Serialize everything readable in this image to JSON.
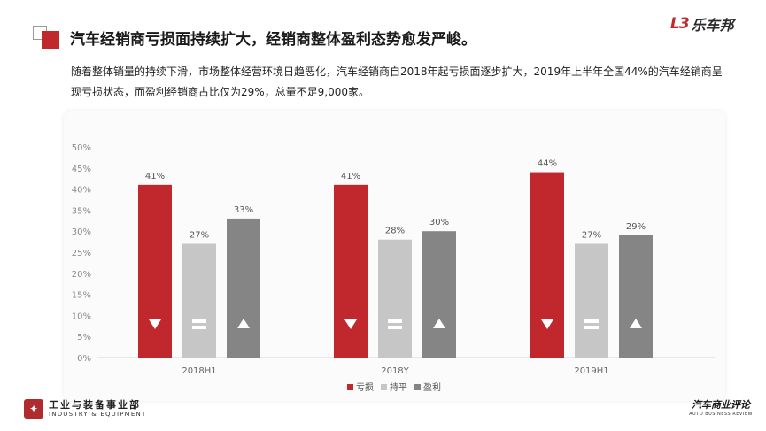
{
  "header": {
    "title": "汽车经销商亏损面持续扩大，经销商整体盈利态势愈发严峻。",
    "brand_mark": "L3",
    "brand_name": "乐车邦"
  },
  "description": "随着整体销量的持续下滑，市场整体经营环境日趋恶化，汽车经销商自2018年起亏损面逐步扩大，2019年上半年全国44%的汽车经销商呈现亏损状态，而盈利经销商占比仅为29%，总量不足9,000家。",
  "footer": {
    "left_logo_cn": "工业与装备事业部",
    "left_logo_en": "INDUSTRY & EQUIPMENT",
    "right_logo_cn": "汽车商业评论",
    "right_logo_en": "AUTO BUSINESS REVIEW"
  },
  "colors": {
    "loss": "#c0282d",
    "breakeven": "#c6c6c6",
    "profit": "#858585",
    "accent": "#c0282d"
  },
  "chart_data": {
    "type": "bar",
    "categories": [
      "2018H1",
      "2018Y",
      "2019H1"
    ],
    "series": [
      {
        "name": "亏损",
        "values": [
          41,
          41,
          44
        ],
        "labels": [
          "41%",
          "41%",
          "44%"
        ],
        "icon": "down-triangle-icon"
      },
      {
        "name": "持平",
        "values": [
          27,
          28,
          27
        ],
        "labels": [
          "27%",
          "28%",
          "27%"
        ],
        "icon": "equals-icon"
      },
      {
        "name": "盈利",
        "values": [
          33,
          30,
          29
        ],
        "labels": [
          "33%",
          "30%",
          "29%"
        ],
        "icon": "up-triangle-icon"
      }
    ],
    "ylim": [
      0,
      50
    ],
    "yticks": [
      "0%",
      "5%",
      "10%",
      "15%",
      "20%",
      "25%",
      "30%",
      "35%",
      "40%",
      "45%",
      "50%"
    ],
    "legend_position": "bottom",
    "grid": false
  }
}
